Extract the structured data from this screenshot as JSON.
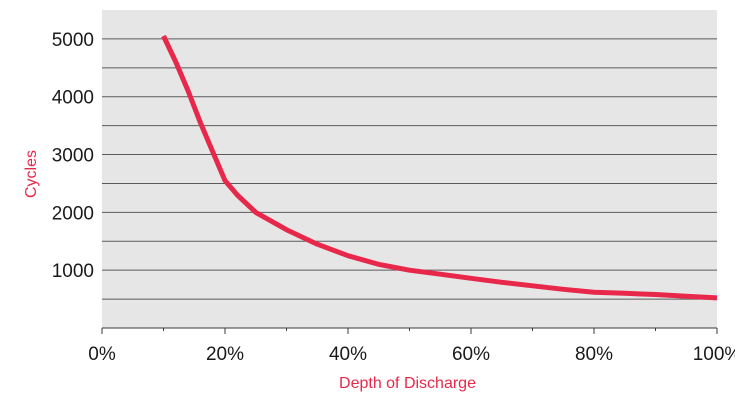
{
  "chart_data": {
    "type": "line",
    "xlabel": "Depth of Discharge",
    "ylabel": "Cycles",
    "xlim": [
      0,
      100
    ],
    "ylim": [
      0,
      5500
    ],
    "x_ticks": [
      0,
      20,
      40,
      60,
      80,
      100
    ],
    "x_tick_labels": [
      "0%",
      "20%",
      "40%",
      "60%",
      "80%",
      "100%"
    ],
    "y_ticks": [
      1000,
      2000,
      3000,
      4000,
      5000
    ],
    "y_tick_labels": [
      "1000",
      "2000",
      "3000",
      "4000",
      "5000"
    ],
    "gridlines_y": [
      500,
      1000,
      1500,
      2000,
      2500,
      3000,
      3500,
      4000,
      4500,
      5000
    ],
    "grid": true,
    "series": [
      {
        "x": [
          10,
          12,
          14,
          16,
          18,
          20,
          22,
          25,
          30,
          35,
          40,
          45,
          50,
          55,
          60,
          65,
          70,
          75,
          80,
          85,
          90,
          95,
          100
        ],
        "values": [
          5050,
          4600,
          4100,
          3550,
          3050,
          2550,
          2300,
          2000,
          1700,
          1450,
          1250,
          1100,
          1000,
          930,
          860,
          790,
          730,
          670,
          620,
          600,
          580,
          550,
          520
        ]
      }
    ],
    "colors": {
      "plot_background": "#e6e6e6",
      "line": "#e8284a",
      "gridline": "#5a5a5a",
      "axis_title": "#e8284a",
      "tick_label": "#1a1a1a"
    }
  }
}
